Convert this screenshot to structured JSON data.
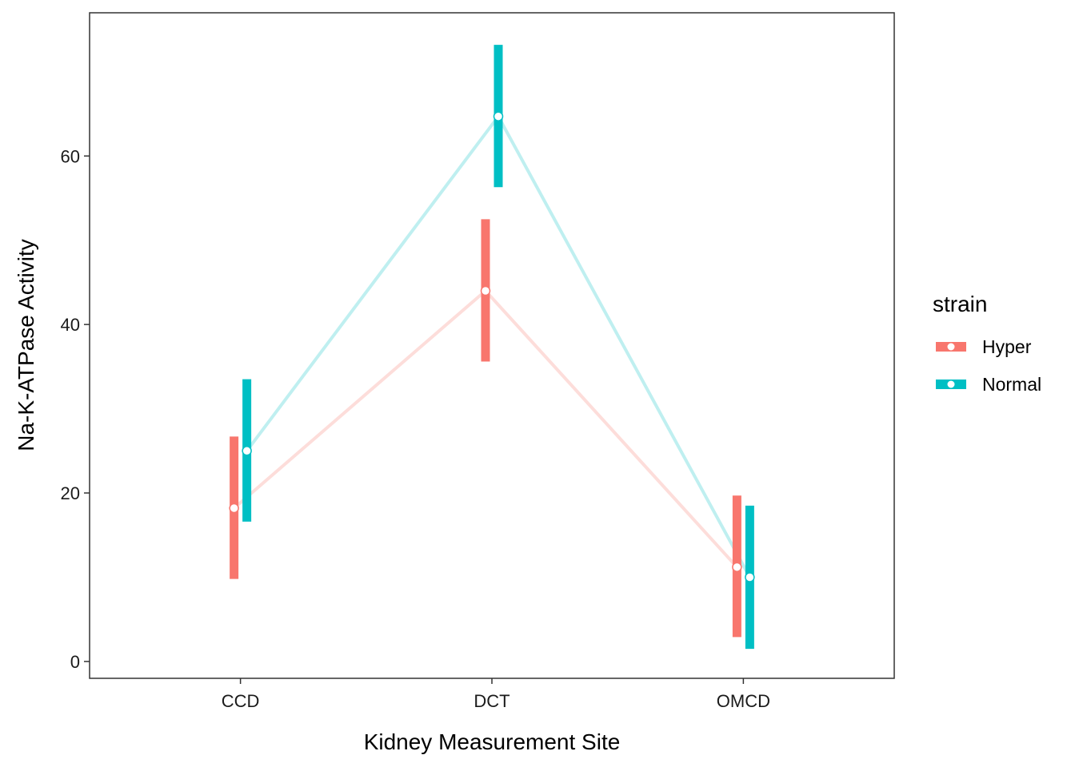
{
  "chart_data": {
    "type": "line",
    "xlabel": "Kidney Measurement Site",
    "ylabel": "Na-K-ATPase Activity",
    "categories": [
      "CCD",
      "DCT",
      "OMCD"
    ],
    "ylim": [
      -2,
      77
    ],
    "yticks": [
      0,
      20,
      40,
      60
    ],
    "grid": false,
    "legend": {
      "title": "strain",
      "position": "right"
    },
    "series": [
      {
        "name": "Hyper",
        "color": "#F8766D",
        "values": [
          18.2,
          44.0,
          11.2
        ],
        "lower": [
          9.8,
          35.6,
          2.9
        ],
        "upper": [
          26.7,
          52.5,
          19.7
        ]
      },
      {
        "name": "Normal",
        "color": "#00BFC4",
        "values": [
          25.0,
          64.7,
          10.0
        ],
        "lower": [
          16.6,
          56.3,
          1.5
        ],
        "upper": [
          33.5,
          73.2,
          18.5
        ]
      }
    ]
  }
}
